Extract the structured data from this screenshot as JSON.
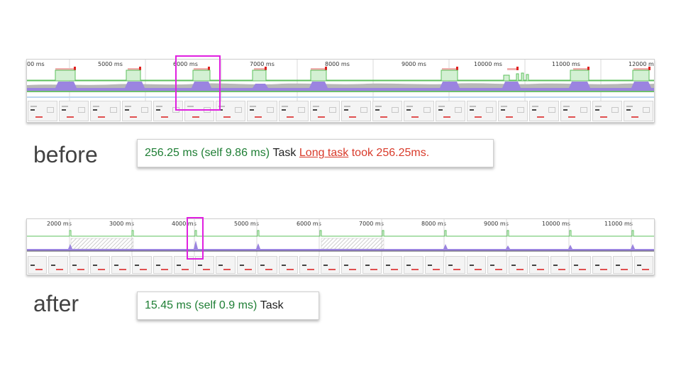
{
  "before": {
    "label": "before",
    "ruler_ticks": [
      "00 ms",
      "5000 ms",
      "6000 ms",
      "7000 ms",
      "8000 ms",
      "9000 ms",
      "10000 ms",
      "11000 ms",
      "12000 ms"
    ],
    "tooltip": {
      "duration": "256.25 ms (self 9.86 ms)",
      "task": "Task",
      "warning_link": "Long task",
      "warning_text": "took 256.25ms."
    }
  },
  "after": {
    "label": "after",
    "ruler_ticks": [
      "2000 ms",
      "3000 ms",
      "4000 ms",
      "5000 ms",
      "6000 ms",
      "7000 ms",
      "8000 ms",
      "9000 ms",
      "10000 ms",
      "11000 ms"
    ],
    "tooltip": {
      "duration": "15.45 ms (self 0.9 ms)",
      "task": "Task"
    }
  },
  "colors": {
    "fps_green": "#5cc05c",
    "cpu_purple": "#9b84e0",
    "cpu_gray": "#b8b8b8",
    "long_task_red": "#e05050",
    "highlight": "#e020e0"
  }
}
